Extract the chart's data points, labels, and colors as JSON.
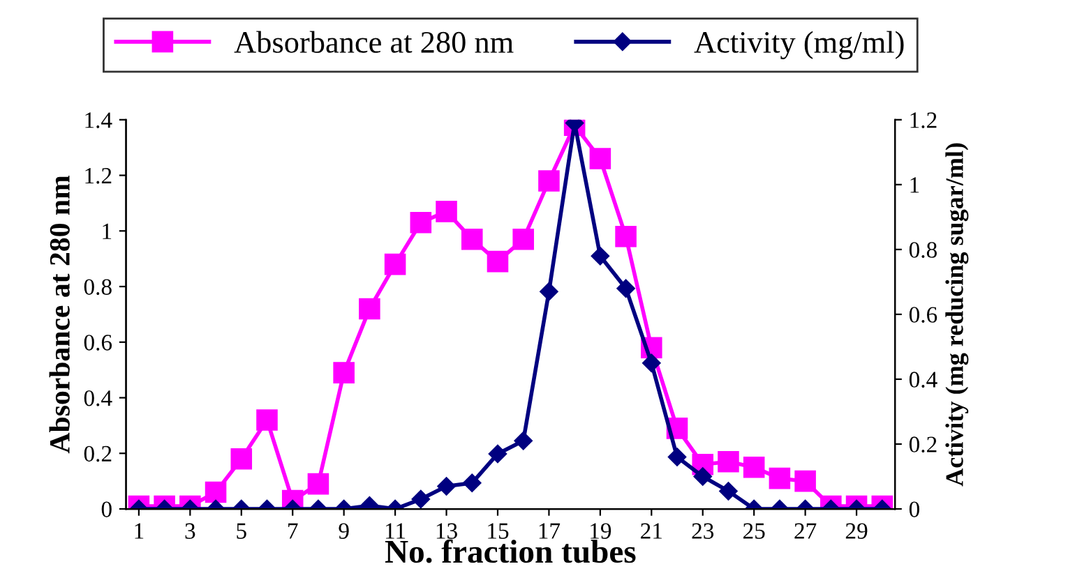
{
  "chart_data": {
    "type": "line",
    "xlabel": "No. fraction tubes",
    "ylabel": "Absorbance at 280 nm",
    "y2label": "Activity (mg reducing sugar/ml)",
    "x": [
      1,
      2,
      3,
      4,
      5,
      6,
      7,
      8,
      9,
      10,
      11,
      12,
      13,
      14,
      15,
      16,
      17,
      18,
      19,
      20,
      21,
      22,
      23,
      24,
      25,
      26,
      27,
      28,
      29,
      30
    ],
    "xlim": [
      0.5,
      30.5
    ],
    "xticks": [
      1,
      3,
      5,
      7,
      9,
      11,
      13,
      15,
      17,
      19,
      21,
      23,
      25,
      27,
      29
    ],
    "ylim": [
      0,
      1.4
    ],
    "yticks": [
      0,
      0.2,
      0.4,
      0.6,
      0.8,
      1,
      1.2,
      1.4
    ],
    "y2lim": [
      0,
      1.2
    ],
    "y2ticks": [
      0,
      0.2,
      0.4,
      0.6,
      0.8,
      1,
      1.2
    ],
    "series": [
      {
        "name": "Absorbance at 280 nm",
        "color": "#ff00ff",
        "marker": "square",
        "values": [
          0.01,
          0.01,
          0.01,
          0.06,
          0.18,
          0.32,
          0.03,
          0.09,
          0.49,
          0.72,
          0.88,
          1.03,
          1.07,
          0.97,
          0.89,
          0.97,
          1.18,
          1.38,
          1.26,
          0.98,
          0.58,
          0.29,
          0.16,
          0.17,
          0.15,
          0.11,
          0.1,
          0.01,
          0.01,
          0.01
        ]
      },
      {
        "name": "Activity (mg/ml)",
        "color": "#000080",
        "marker": "diamond",
        "axis": "y2",
        "values": [
          0,
          0,
          0,
          0,
          0,
          0,
          0,
          0,
          0,
          0.01,
          0,
          0.03,
          0.07,
          0.08,
          0.17,
          0.21,
          0.67,
          1.19,
          0.78,
          0.68,
          0.45,
          0.16,
          0.1,
          0.055,
          0,
          0,
          0,
          0,
          0,
          0
        ]
      }
    ],
    "legend": "top",
    "grid": false
  }
}
